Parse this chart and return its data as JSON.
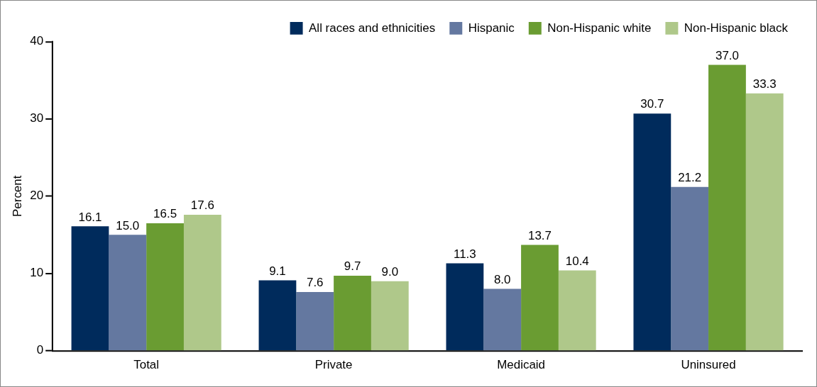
{
  "chart_data": {
    "type": "bar",
    "ylabel": "Percent",
    "categories": [
      "Total",
      "Private",
      "Medicaid",
      "Uninsured"
    ],
    "series": [
      {
        "name": "All races and ethnicities",
        "color": "#002b5c",
        "values": [
          16.1,
          9.1,
          11.3,
          30.7
        ]
      },
      {
        "name": "Hispanic",
        "color": "#6478a0",
        "values": [
          15.0,
          7.6,
          8.0,
          21.2
        ]
      },
      {
        "name": "Non-Hispanic white",
        "color": "#6a9c32",
        "values": [
          16.5,
          9.7,
          13.7,
          37.0
        ]
      },
      {
        "name": "Non-Hispanic black",
        "color": "#afc88a",
        "values": [
          17.6,
          9.0,
          10.4,
          33.3
        ]
      }
    ],
    "value_labels": [
      [
        "16.1",
        "9.1",
        "11.3",
        "30.7"
      ],
      [
        "15.0",
        "7.6",
        "8.0",
        "21.2"
      ],
      [
        "16.5",
        "9.7",
        "13.7",
        "37.0"
      ],
      [
        "17.6",
        "9.0",
        "10.4",
        "33.3"
      ]
    ],
    "ylim": [
      0,
      40
    ],
    "yticks": [
      0,
      10,
      20,
      30,
      40
    ],
    "grid": false,
    "legend": "top right"
  }
}
